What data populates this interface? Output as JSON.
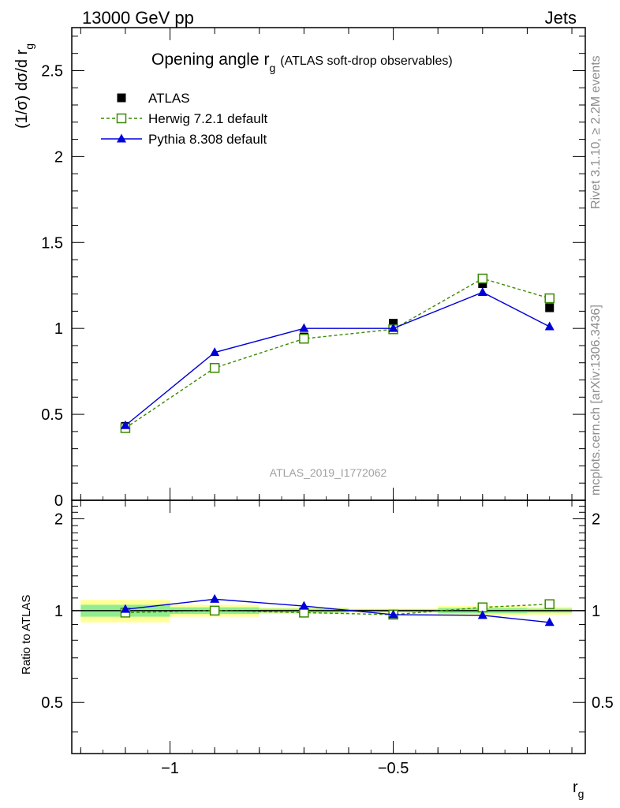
{
  "header": {
    "energy_label": "13000 GeV pp",
    "category_label": "Jets"
  },
  "title": {
    "main": "Opening angle r",
    "sub": "g",
    "paren": "(ATLAS soft-drop observables)"
  },
  "side_labels": {
    "rivet": "Rivet 3.1.10, ≥ 2.2M events",
    "mcplots": "mcplots.cern.ch [arXiv:1306.3436]"
  },
  "watermark": "ATLAS_2019_I1772062",
  "axes": {
    "ylabel_main": "(1/σ) dσ/d r",
    "ylabel_main_sub": "g",
    "ylabel_ratio": "Ratio to ATLAS",
    "xlabel": "r",
    "xlabel_sub": "g"
  },
  "legend": [
    {
      "name": "ATLAS",
      "color": "#000000",
      "marker": "filled-square",
      "line": "none"
    },
    {
      "name": "Herwig 7.2.1 default",
      "color": "#3a8a00",
      "marker": "open-square",
      "line": "dashed"
    },
    {
      "name": "Pythia 8.308 default",
      "color": "#0000d8",
      "marker": "filled-triangle",
      "line": "solid"
    }
  ],
  "chart_data": [
    {
      "type": "scatter",
      "panel": "main",
      "xlim": [
        -1.22,
        -0.07
      ],
      "ylim": [
        0,
        2.75
      ],
      "xscale": "linear",
      "yticks": [
        0,
        0.5,
        1,
        1.5,
        2,
        2.5
      ],
      "ytick_labels": [
        "0",
        "0.5",
        "1",
        "1.5",
        "2",
        "2.5"
      ],
      "x": [
        -1.1,
        -0.9,
        -0.7,
        -0.5,
        -0.3,
        -0.15
      ],
      "x_bins": [
        [
          -1.2,
          -1.0
        ],
        [
          -1.0,
          -0.8
        ],
        [
          -0.8,
          -0.6
        ],
        [
          -0.6,
          -0.4
        ],
        [
          -0.4,
          -0.2
        ],
        [
          -0.2,
          -0.1
        ]
      ],
      "series": [
        {
          "name": "ATLAS",
          "values": [
            0.43,
            0.77,
            0.95,
            1.03,
            1.26,
            1.12
          ]
        },
        {
          "name": "Herwig 7.2.1 default",
          "values": [
            0.42,
            0.77,
            0.94,
            0.995,
            1.29,
            1.175
          ]
        },
        {
          "name": "Pythia 8.308 default",
          "values": [
            0.435,
            0.86,
            1.0,
            1.0,
            1.21,
            1.01
          ]
        }
      ]
    },
    {
      "type": "scatter",
      "panel": "ratio",
      "xlim": [
        -1.22,
        -0.07
      ],
      "ylim": [
        0.34,
        2.3
      ],
      "yscale": "log",
      "yticks": [
        0.5,
        1,
        2
      ],
      "ytick_labels": [
        "0.5",
        "1",
        "2"
      ],
      "xticks": [
        -1,
        -0.5
      ],
      "xtick_labels": [
        "−1",
        "−0.5"
      ],
      "x": [
        -1.1,
        -0.9,
        -0.7,
        -0.5,
        -0.3,
        -0.15
      ],
      "x_bins": [
        [
          -1.2,
          -1.0
        ],
        [
          -1.0,
          -0.8
        ],
        [
          -0.8,
          -0.6
        ],
        [
          -0.6,
          -0.4
        ],
        [
          -0.4,
          -0.2
        ],
        [
          -0.2,
          -0.1
        ]
      ],
      "uncertainty_bands": {
        "inner": {
          "color": "#90ee90",
          "low": [
            0.955,
            0.975,
            0.985,
            0.99,
            0.98,
            0.985
          ],
          "high": [
            1.045,
            1.025,
            1.015,
            1.01,
            1.02,
            1.015
          ]
        },
        "outer": {
          "color": "#ffff99",
          "low": [
            0.915,
            0.955,
            0.975,
            0.985,
            0.965,
            0.97
          ],
          "high": [
            1.085,
            1.045,
            1.025,
            1.015,
            1.035,
            1.03
          ]
        }
      },
      "series": [
        {
          "name": "Herwig 7.2.1 default",
          "values": [
            0.985,
            1.0,
            0.985,
            0.97,
            1.025,
            1.05
          ]
        },
        {
          "name": "Pythia 8.308 default",
          "values": [
            1.01,
            1.09,
            1.035,
            0.97,
            0.965,
            0.915
          ]
        }
      ]
    }
  ]
}
